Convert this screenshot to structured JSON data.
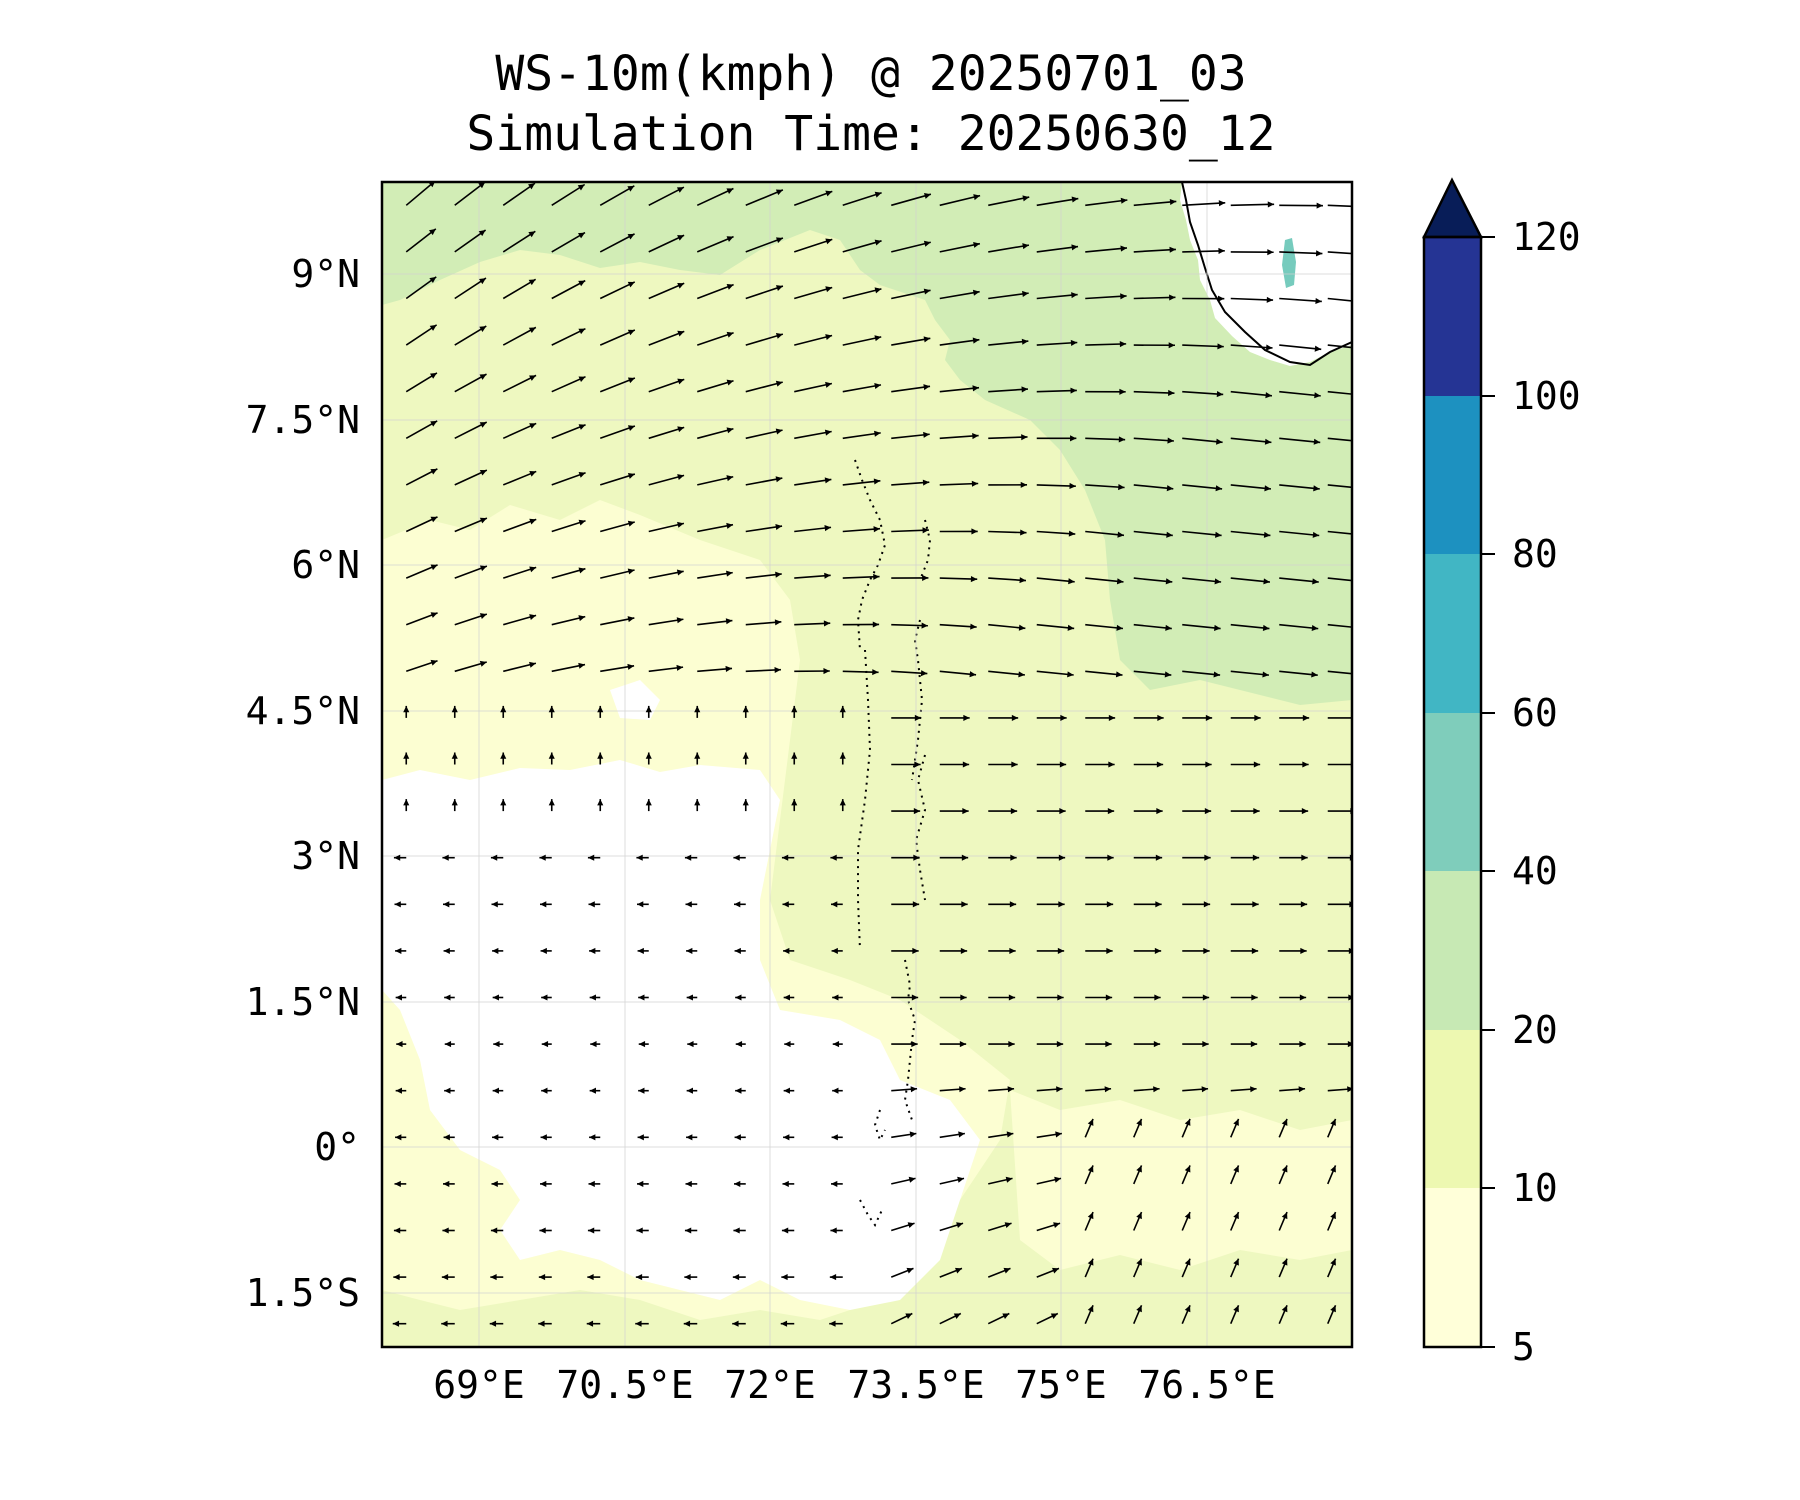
{
  "title": {
    "line1": "WS-10m(kmph) @ 20250701_03",
    "line2": "Simulation Time: 20250630_12"
  },
  "map": {
    "lon_range": [
      67.7,
      77.7
    ],
    "lat_range": [
      -1.95,
      10.05
    ],
    "lon_ticks": [
      {
        "value": 69.0,
        "label": "69°E"
      },
      {
        "value": 70.5,
        "label": "70.5°E"
      },
      {
        "value": 72.0,
        "label": "72°E"
      },
      {
        "value": 73.5,
        "label": "73.5°E"
      },
      {
        "value": 75.0,
        "label": "75°E"
      },
      {
        "value": 76.5,
        "label": "76.5°E"
      }
    ],
    "lat_ticks": [
      {
        "value": 9.0,
        "label": "9°N"
      },
      {
        "value": 7.5,
        "label": "7.5°N"
      },
      {
        "value": 6.0,
        "label": "6°N"
      },
      {
        "value": 4.5,
        "label": "4.5°N"
      },
      {
        "value": 3.0,
        "label": "3°N"
      },
      {
        "value": 1.5,
        "label": "1.5°N"
      },
      {
        "value": 0.0,
        "label": "0°"
      },
      {
        "value": -1.5,
        "label": "1.5°S"
      }
    ],
    "gridlines": true
  },
  "colorbar": {
    "levels": [
      {
        "value": 5,
        "label": "5"
      },
      {
        "value": 10,
        "label": "10"
      },
      {
        "value": 20,
        "label": "20"
      },
      {
        "value": 40,
        "label": "40"
      },
      {
        "value": 60,
        "label": "60"
      },
      {
        "value": 80,
        "label": "80"
      },
      {
        "value": 100,
        "label": "100"
      },
      {
        "value": 120,
        "label": "120"
      }
    ],
    "colors": [
      "#ffffd9",
      "#edf8b1",
      "#c7e9b4",
      "#7fcdbb",
      "#41b6c4",
      "#1d91c0",
      "#225ea8",
      "#081d58"
    ],
    "extend": "max",
    "extend_color": "#081d58"
  },
  "fill_colors": {
    "below_5": "#ffffff",
    "band_5_10": "#fcfed2",
    "band_10_20": "#eef8c0",
    "band_20_40": "#d2edb6",
    "band_40_60": "#76cbbd",
    "land": "#ffffff"
  }
}
